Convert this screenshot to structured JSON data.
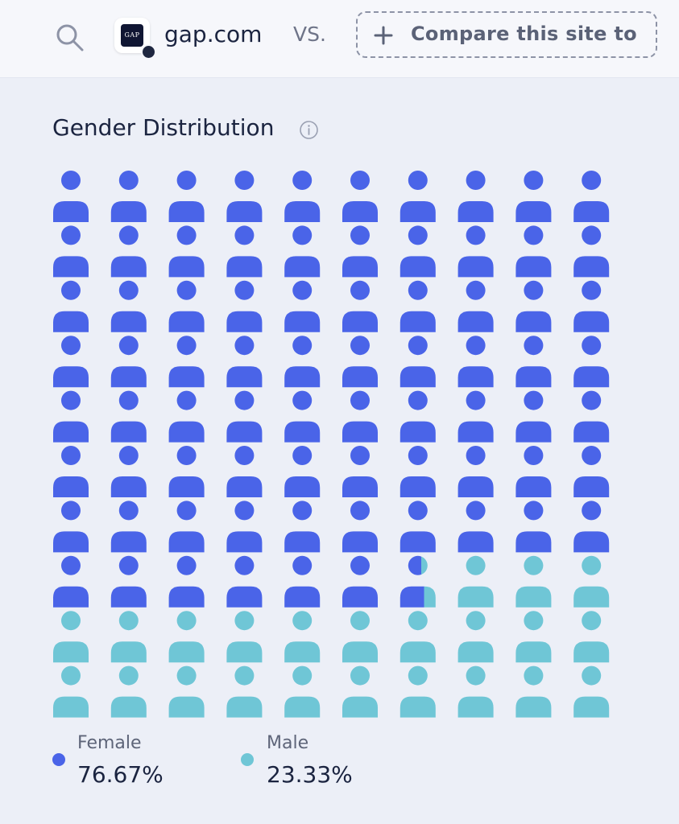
{
  "header": {
    "site": "gap.com",
    "logo_text": "GAP",
    "vs": "VS.",
    "compare_label": "Compare this site to"
  },
  "title": "Gender Distribution",
  "colors": {
    "female": "#4a64e8",
    "male": "#6fc6d6"
  },
  "chart_data": {
    "type": "pictogram",
    "title": "Gender Distribution",
    "total_icons": 100,
    "categories": [
      "Female",
      "Male"
    ],
    "values": [
      76.67,
      23.33
    ],
    "unit": "%"
  },
  "legend": [
    {
      "label": "Female",
      "value": "76.67%"
    },
    {
      "label": "Male",
      "value": "23.33%"
    }
  ]
}
